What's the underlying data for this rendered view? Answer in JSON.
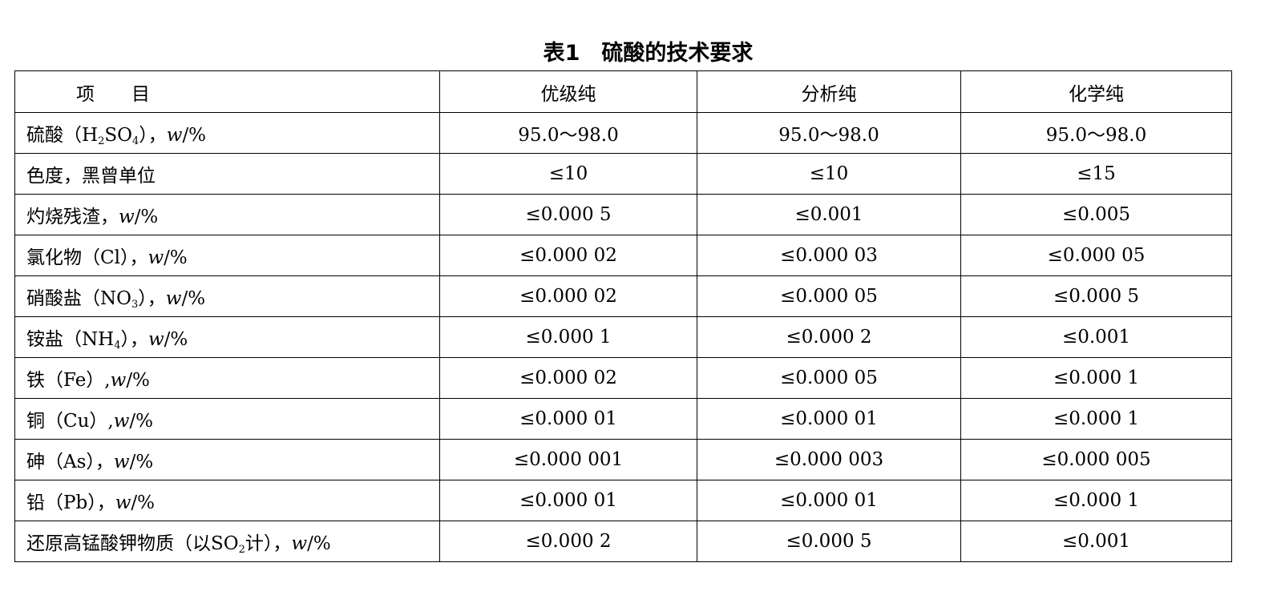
{
  "title": "表1　硫酸的技术要求",
  "headers": [
    "项　　目",
    "优级纯",
    "分析纯",
    "化学纯"
  ],
  "rows": [
    {
      "label": [
        {
          "t": "硫酸（H"
        },
        {
          "t": "2",
          "sub": true
        },
        {
          "t": "SO"
        },
        {
          "t": "4",
          "sub": true
        },
        {
          "t": "），"
        },
        {
          "t": "w",
          "i": true
        },
        {
          "t": "/%"
        }
      ],
      "values": [
        "95.0～98.0",
        "95.0～98.0",
        "95.0～98.0"
      ]
    },
    {
      "label": [
        {
          "t": "色度，黑曾单位"
        }
      ],
      "values": [
        "≤10",
        "≤10",
        "≤15"
      ]
    },
    {
      "label": [
        {
          "t": "灼烧残渣，"
        },
        {
          "t": "w",
          "i": true
        },
        {
          "t": "/%"
        }
      ],
      "values": [
        "≤0.000 5",
        "≤0.001",
        "≤0.005"
      ]
    },
    {
      "label": [
        {
          "t": "氯化物（Cl），"
        },
        {
          "t": "w",
          "i": true
        },
        {
          "t": "/%"
        }
      ],
      "values": [
        "≤0.000 02",
        "≤0.000 03",
        "≤0.000 05"
      ]
    },
    {
      "label": [
        {
          "t": "硝酸盐（NO"
        },
        {
          "t": "3",
          "sub": true
        },
        {
          "t": "），"
        },
        {
          "t": "w",
          "i": true
        },
        {
          "t": "/%"
        }
      ],
      "values": [
        "≤0.000 02",
        "≤0.000 05",
        "≤0.000 5"
      ]
    },
    {
      "label": [
        {
          "t": "铵盐（NH"
        },
        {
          "t": "4",
          "sub": true
        },
        {
          "t": "），"
        },
        {
          "t": "w",
          "i": true
        },
        {
          "t": "/%"
        }
      ],
      "values": [
        "≤0.000 1",
        "≤0.000 2",
        "≤0.001"
      ]
    },
    {
      "label": [
        {
          "t": "铁（Fe）,"
        },
        {
          "t": "w",
          "i": true
        },
        {
          "t": "/%"
        }
      ],
      "values": [
        "≤0.000 02",
        "≤0.000 05",
        "≤0.000 1"
      ]
    },
    {
      "label": [
        {
          "t": "铜（Cu）,"
        },
        {
          "t": "w",
          "i": true
        },
        {
          "t": "/%"
        }
      ],
      "values": [
        "≤0.000 01",
        "≤0.000 01",
        "≤0.000 1"
      ]
    },
    {
      "label": [
        {
          "t": "砷（As），"
        },
        {
          "t": "w",
          "i": true
        },
        {
          "t": "/%"
        }
      ],
      "values": [
        "≤0.000 001",
        "≤0.000 003",
        "≤0.000 005"
      ]
    },
    {
      "label": [
        {
          "t": "铅（Pb），"
        },
        {
          "t": "w",
          "i": true
        },
        {
          "t": "/%"
        }
      ],
      "values": [
        "≤0.000 01",
        "≤0.000 01",
        "≤0.000 1"
      ]
    },
    {
      "label": [
        {
          "t": "还原高锰酸钾物质（以SO"
        },
        {
          "t": "2",
          "sub": true
        },
        {
          "t": "计），"
        },
        {
          "t": "w",
          "i": true
        },
        {
          "t": "/%"
        }
      ],
      "values": [
        "≤0.000 2",
        "≤0.000 5",
        "≤0.001"
      ]
    }
  ]
}
